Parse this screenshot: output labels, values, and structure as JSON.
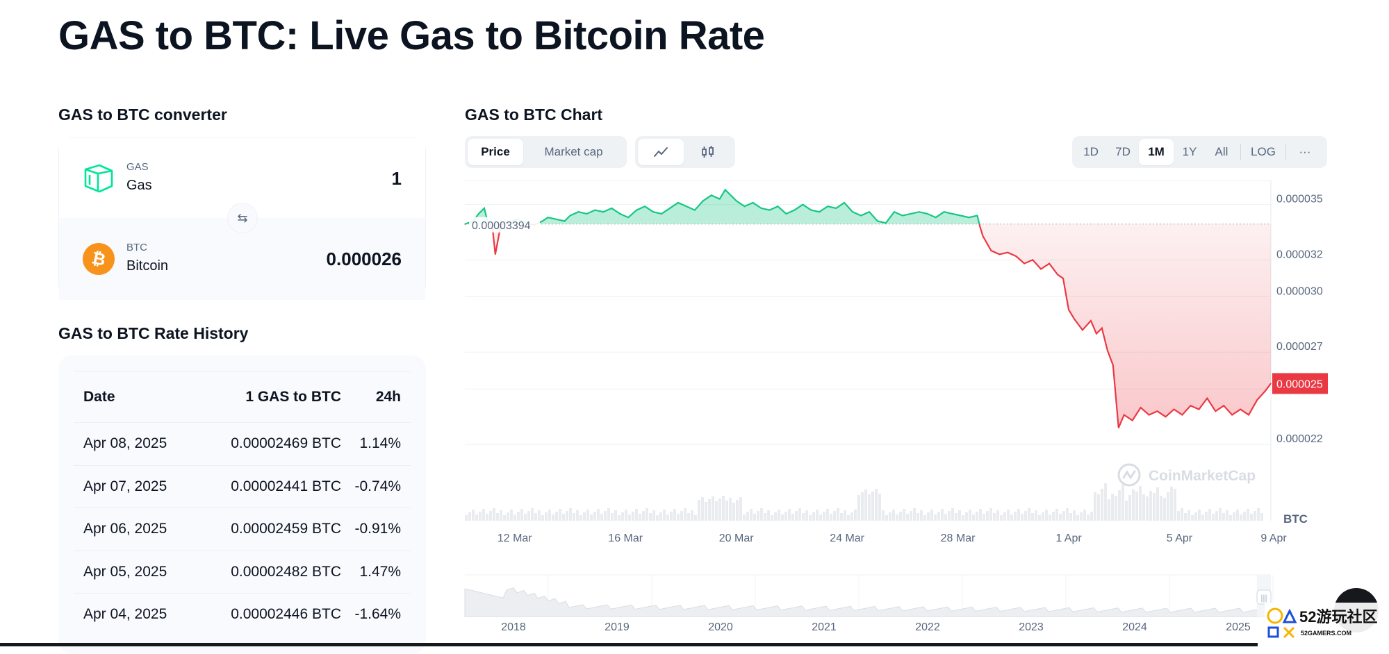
{
  "page": {
    "title": "GAS to BTC: Live Gas to Bitcoin Rate"
  },
  "converter": {
    "title": "GAS to BTC converter",
    "from": {
      "symbol": "GAS",
      "name": "Gas",
      "amount": "1",
      "icon": "gas-logo-icon",
      "color": "#00e599"
    },
    "to": {
      "symbol": "BTC",
      "name": "Bitcoin",
      "amount": "0.000026",
      "icon": "bitcoin-logo-icon",
      "color": "#f7931a"
    },
    "swap_icon": "swap-arrows-icon"
  },
  "history": {
    "title": "GAS to BTC Rate History",
    "columns": [
      "Date",
      "1 GAS to BTC",
      "24h"
    ],
    "rows": [
      {
        "date": "Apr 08, 2025",
        "rate": "0.00002469 BTC",
        "change": "1.14%"
      },
      {
        "date": "Apr 07, 2025",
        "rate": "0.00002441 BTC",
        "change": "-0.74%"
      },
      {
        "date": "Apr 06, 2025",
        "rate": "0.00002459 BTC",
        "change": "-0.91%"
      },
      {
        "date": "Apr 05, 2025",
        "rate": "0.00002482 BTC",
        "change": "1.47%"
      },
      {
        "date": "Apr 04, 2025",
        "rate": "0.00002446 BTC",
        "change": "-1.64%"
      }
    ]
  },
  "chart_section": {
    "title": "GAS to BTC Chart",
    "type_tabs": [
      {
        "label": "Price",
        "active": true
      },
      {
        "label": "Market cap",
        "active": false
      }
    ],
    "view_icons": [
      {
        "icon": "line-chart-icon",
        "active": true
      },
      {
        "icon": "candlestick-icon",
        "active": false
      }
    ],
    "ranges": [
      {
        "label": "1D",
        "active": false
      },
      {
        "label": "7D",
        "active": false
      },
      {
        "label": "1M",
        "active": true
      },
      {
        "label": "1Y",
        "active": false
      },
      {
        "label": "All",
        "active": false
      }
    ],
    "log_label": "LOG",
    "more_label": "···",
    "watermark": "CoinMarketCap"
  },
  "chart_data": {
    "type": "line",
    "baseline_label": "0.00003394",
    "baseline_value": 3.394e-05,
    "current_value_label": "0.000025",
    "current_value": 2.53e-05,
    "y_unit": "BTC",
    "ylim": [
      2.05e-05,
      3.6e-05
    ],
    "y_ticks": [
      {
        "value": 3.5e-05,
        "label": "0.000035"
      },
      {
        "value": 3.2e-05,
        "label": "0.000032"
      },
      {
        "value": 3e-05,
        "label": "0.000030"
      },
      {
        "value": 2.7e-05,
        "label": "0.000027"
      },
      {
        "value": 2.5e-05,
        "label": "0.000025"
      },
      {
        "value": 2.2e-05,
        "label": "0.000022"
      }
    ],
    "xlim": [
      10.2,
      39.3
    ],
    "x_ticks": [
      {
        "value": 12,
        "label": "12 Mar"
      },
      {
        "value": 16,
        "label": "16 Mar"
      },
      {
        "value": 20,
        "label": "20 Mar"
      },
      {
        "value": 24,
        "label": "24 Mar"
      },
      {
        "value": 28,
        "label": "28 Mar"
      },
      {
        "value": 32,
        "label": "1 Apr"
      },
      {
        "value": 36,
        "label": "5 Apr"
      },
      {
        "value": 40,
        "label": "9 Apr"
      }
    ],
    "series": [
      {
        "x": [
          10.2,
          10.5,
          10.7,
          10.9,
          11.0,
          11.2,
          11.3,
          11.5,
          11.7,
          11.9,
          12.1,
          12.4,
          12.7,
          13.0,
          13.2,
          13.5,
          13.8,
          14.0,
          14.3,
          14.6,
          14.9,
          15.2,
          15.5,
          15.8,
          16.1,
          16.4,
          16.7,
          17.0,
          17.3,
          17.6,
          17.9,
          18.2,
          18.5,
          18.8,
          19.1,
          19.4,
          19.6,
          19.8,
          20.0,
          20.3,
          20.6,
          20.9,
          21.2,
          21.5,
          21.8,
          22.1,
          22.4,
          22.7,
          23.0,
          23.3,
          23.6,
          23.9,
          24.2,
          24.5,
          24.8,
          25.1,
          25.4,
          25.7,
          26.0,
          26.3,
          26.6,
          26.9,
          27.2,
          27.5,
          27.8,
          28.1,
          28.4,
          28.7,
          28.8,
          28.9,
          29.2,
          29.5,
          29.8,
          30.1,
          30.4,
          30.7,
          31.0,
          31.3,
          31.6,
          31.8,
          32.0,
          32.2,
          32.5,
          32.8,
          33.0,
          33.2,
          33.4,
          33.6,
          33.8,
          34.0,
          34.3,
          34.6,
          34.9,
          35.2,
          35.5,
          35.8,
          36.1,
          36.4,
          36.7,
          37.0,
          37.3,
          37.6,
          37.9,
          38.2,
          38.5,
          38.8,
          39.1,
          39.3
        ],
        "values": [
          3.394e-05,
          3.41e-05,
          3.45e-05,
          3.48e-05,
          3.42e-05,
          3.37e-05,
          3.23e-05,
          3.39e-05,
          3.4e-05,
          3.41e-05,
          3.42e-05,
          3.4e-05,
          3.39e-05,
          3.41e-05,
          3.43e-05,
          3.42e-05,
          3.41e-05,
          3.44e-05,
          3.46e-05,
          3.45e-05,
          3.47e-05,
          3.46e-05,
          3.48e-05,
          3.45e-05,
          3.43e-05,
          3.47e-05,
          3.49e-05,
          3.46e-05,
          3.45e-05,
          3.48e-05,
          3.51e-05,
          3.49e-05,
          3.47e-05,
          3.52e-05,
          3.55e-05,
          3.53e-05,
          3.58e-05,
          3.55e-05,
          3.52e-05,
          3.49e-05,
          3.51e-05,
          3.48e-05,
          3.47e-05,
          3.49e-05,
          3.45e-05,
          3.47e-05,
          3.5e-05,
          3.47e-05,
          3.46e-05,
          3.49e-05,
          3.48e-05,
          3.51e-05,
          3.46e-05,
          3.44e-05,
          3.46e-05,
          3.41e-05,
          3.4e-05,
          3.46e-05,
          3.44e-05,
          3.45e-05,
          3.46e-05,
          3.45e-05,
          3.43e-05,
          3.46e-05,
          3.45e-05,
          3.44e-05,
          3.43e-05,
          3.44e-05,
          3.38e-05,
          3.33e-05,
          3.25e-05,
          3.23e-05,
          3.24e-05,
          3.22e-05,
          3.18e-05,
          3.2e-05,
          3.15e-05,
          3.18e-05,
          3.12e-05,
          3.1e-05,
          2.93e-05,
          2.88e-05,
          2.82e-05,
          2.87e-05,
          2.8e-05,
          2.83e-05,
          2.71e-05,
          2.63e-05,
          2.29e-05,
          2.36e-05,
          2.33e-05,
          2.4e-05,
          2.36e-05,
          2.38e-05,
          2.35e-05,
          2.39e-05,
          2.36e-05,
          2.41e-05,
          2.39e-05,
          2.45e-05,
          2.38e-05,
          2.41e-05,
          2.36e-05,
          2.39e-05,
          2.36e-05,
          2.44e-05,
          2.49e-05,
          2.53e-05
        ]
      }
    ],
    "overview": {
      "x_ticks": [
        "2018",
        "2019",
        "2020",
        "2021",
        "2022",
        "2023",
        "2024",
        "2025"
      ]
    }
  }
}
